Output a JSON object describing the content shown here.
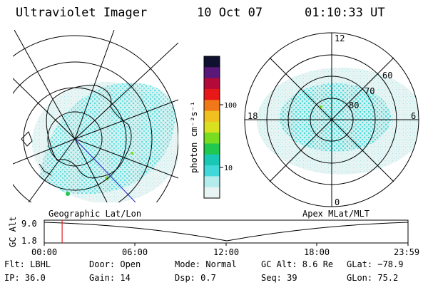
{
  "header": {
    "title": "Ultraviolet Imager",
    "date": "10 Oct 07",
    "time": "01:10:33 UT"
  },
  "left_map": {
    "label": "Geographic Lat/Lon"
  },
  "right_map": {
    "label": "Apex MLat/MLT",
    "mlt_labels": [
      "12",
      "18",
      "6",
      "0"
    ],
    "mlat_labels": [
      "60",
      "70",
      "80"
    ]
  },
  "colorbar": {
    "unit_label": "photon cm⁻²s⁻¹",
    "ticks": [
      "100",
      "10"
    ],
    "scale": "log",
    "colors": [
      "#101030",
      "#5a1878",
      "#b40a3a",
      "#e81818",
      "#f07818",
      "#f0c020",
      "#d8e020",
      "#78dc20",
      "#20c850",
      "#18c8b4",
      "#40d8d8",
      "#b4ecec",
      "#e8f4f4"
    ]
  },
  "altitude_strip": {
    "axis_title": "GC Alt",
    "y_ticks": [
      "9.0",
      "1.8"
    ],
    "x_ticks": [
      "00:00",
      "06:00",
      "12:00",
      "18:00",
      "23:59"
    ],
    "marker_time_hours": 1.18,
    "marker_color": "#e02020"
  },
  "info": {
    "rows": [
      [
        {
          "text": "Flt: LBHL"
        },
        {
          "text": "Door: Open"
        },
        {
          "text": "Mode: Normal"
        },
        {
          "text": "GC Alt: 8.6 Re"
        },
        {
          "text": "GLat: −78.9"
        }
      ],
      [
        {
          "text": "IP: 36.0"
        },
        {
          "text": "Gain: 14"
        },
        {
          "text": "Dsp:    0.7"
        },
        {
          "text": "Seq: 39"
        },
        {
          "text": "GLon:  75.2"
        }
      ]
    ]
  }
}
